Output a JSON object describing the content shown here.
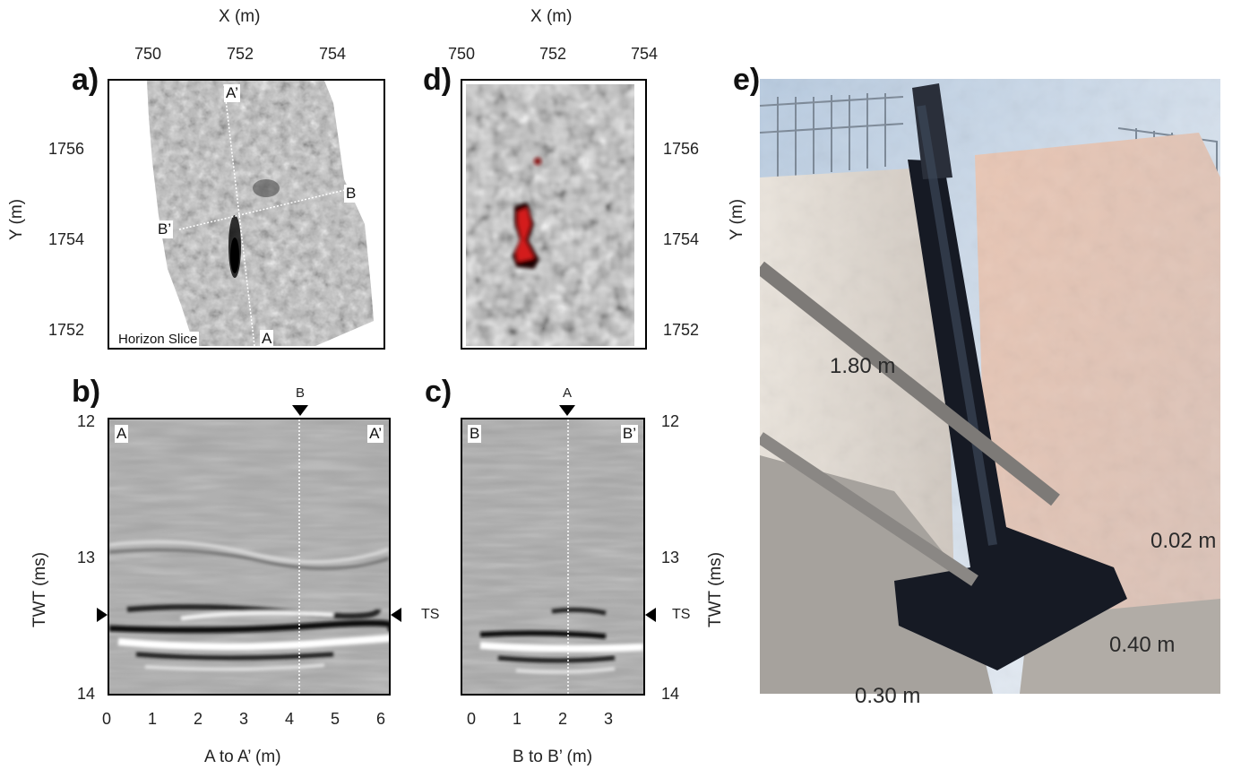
{
  "panels": {
    "a": {
      "letter": "a)",
      "x_axis_title": "X (m)",
      "y_axis_title": "Y (m)",
      "x_ticks": [
        "750",
        "752",
        "754"
      ],
      "y_ticks": [
        "1756",
        "1754",
        "1752"
      ],
      "corner_label": "Horizon Slice",
      "profile_labels": {
        "a_prime": "A’",
        "a": "A",
        "b": "B",
        "b_prime": "B’"
      }
    },
    "b": {
      "letter": "b)",
      "x_axis_title": "A to A’ (m)",
      "y_axis_title": "TWT (ms)",
      "x_ticks": [
        "0",
        "1",
        "2",
        "3",
        "4",
        "5",
        "6"
      ],
      "y_ticks": [
        "12",
        "13",
        "14"
      ],
      "left_end": "A",
      "right_end": "A’",
      "crossing_marker": "B",
      "ts_label": "TS"
    },
    "c": {
      "letter": "c)",
      "x_axis_title": "B to B’ (m)",
      "y_axis_title": "TWT (ms)",
      "x_ticks": [
        "0",
        "1",
        "2",
        "3"
      ],
      "y_ticks": [
        "12",
        "13",
        "14"
      ],
      "left_end": "B",
      "right_end": "B’",
      "crossing_marker": "A",
      "ts_label": "TS"
    },
    "d": {
      "letter": "d)",
      "x_axis_title": "X (m)",
      "x_ticks": [
        "750",
        "752",
        "754"
      ],
      "y_ticks": [
        "1756",
        "1754",
        "1752"
      ]
    },
    "e": {
      "letter": "e)",
      "y_axis_title": "Y (m)",
      "dimensions": {
        "length": "1.80 m",
        "top": "0.02 m",
        "side": "0.40 m",
        "bottom": "0.30 m"
      }
    }
  },
  "colors": {
    "anomaly": "#d41c1c",
    "frame": "#000000",
    "section_gray": "#a7a7a7"
  }
}
